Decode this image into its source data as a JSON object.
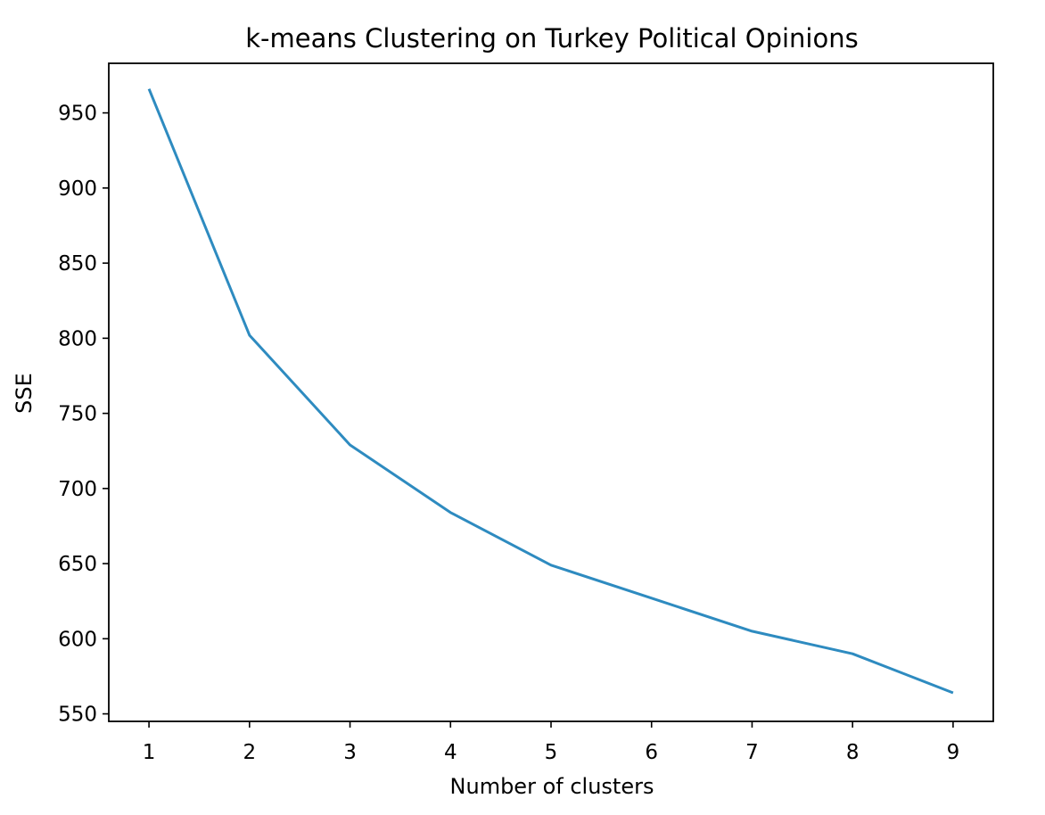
{
  "chart_data": {
    "type": "line",
    "title": "k-means Clustering on Turkey Political Opinions",
    "xlabel": "Number of clusters",
    "ylabel": "SSE",
    "x": [
      1,
      2,
      3,
      4,
      5,
      6,
      7,
      8,
      9
    ],
    "series": [
      {
        "values": [
          966,
          802,
          729,
          684,
          649,
          627,
          605,
          590,
          564
        ],
        "color": "#2e8bc0"
      }
    ],
    "xticks": [
      1,
      2,
      3,
      4,
      5,
      6,
      7,
      8,
      9
    ],
    "xtick_labels": [
      "1",
      "2",
      "3",
      "4",
      "5",
      "6",
      "7",
      "8",
      "9"
    ],
    "yticks": [
      550,
      600,
      650,
      700,
      750,
      800,
      850,
      900,
      950
    ],
    "ytick_labels": [
      "550",
      "600",
      "650",
      "700",
      "750",
      "800",
      "850",
      "900",
      "950"
    ],
    "xlim": [
      0.6,
      9.4
    ],
    "ylim": [
      545,
      983
    ],
    "grid": false,
    "legend": "none"
  }
}
